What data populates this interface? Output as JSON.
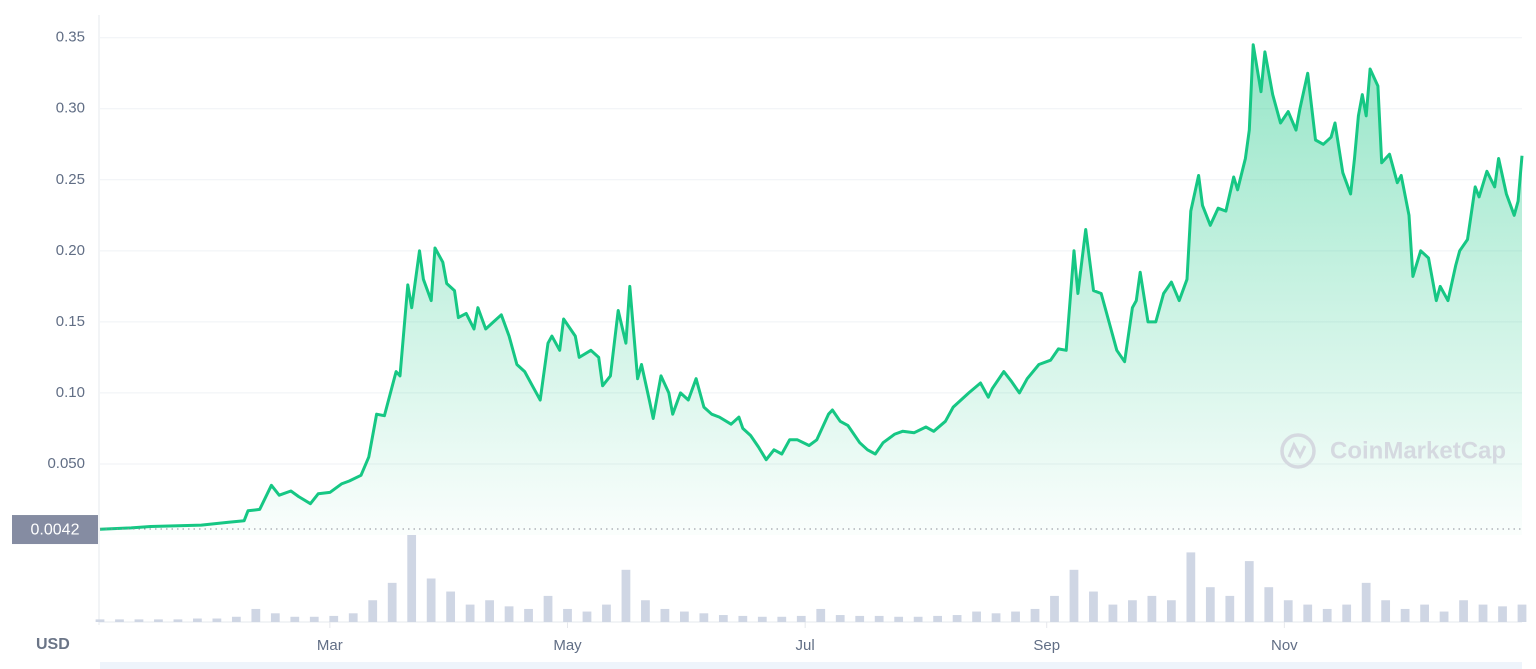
{
  "chart_data": {
    "type": "line",
    "currency": "USD",
    "watermark": "CoinMarketCap",
    "start_price": 0.0042,
    "color": "#16c784",
    "xlim": [
      0,
      365
    ],
    "xticks": [
      {
        "value": 59,
        "label": "Mar"
      },
      {
        "value": 120,
        "label": "May"
      },
      {
        "value": 181,
        "label": "Jul"
      },
      {
        "value": 243,
        "label": "Sep"
      },
      {
        "value": 304,
        "label": "Nov"
      }
    ],
    "ylim": [
      0,
      0.366
    ],
    "yticks": [
      {
        "value": 0.05,
        "label": "0.050"
      },
      {
        "value": 0.1,
        "label": "0.10"
      },
      0.15,
      {
        "value": 0.2,
        "label": "0.20"
      },
      0.25,
      {
        "value": 0.3,
        "label": "0.30"
      },
      0.35
    ],
    "grid": true,
    "x": [
      0,
      8,
      13,
      26,
      33,
      37,
      38,
      41,
      44,
      46,
      49,
      51,
      54,
      56,
      59,
      62,
      64,
      67,
      69,
      71,
      73,
      76,
      77,
      79,
      80,
      82,
      83,
      85,
      86,
      88,
      89,
      91,
      92,
      94,
      96,
      97,
      99,
      101,
      103,
      105,
      107,
      109,
      111,
      113,
      115,
      116,
      118,
      119,
      122,
      123,
      126,
      128,
      129,
      131,
      133,
      135,
      136,
      138,
      139,
      141,
      142,
      144,
      146,
      147,
      149,
      151,
      153,
      155,
      157,
      159,
      162,
      164,
      165,
      167,
      169,
      171,
      173,
      175,
      177,
      179,
      182,
      184,
      187,
      188,
      190,
      192,
      195,
      197,
      199,
      201,
      204,
      206,
      209,
      212,
      214,
      217,
      219,
      221,
      223,
      226,
      228,
      229,
      232,
      234,
      236,
      238,
      241,
      244,
      246,
      248,
      250,
      251,
      253,
      255,
      257,
      259,
      261,
      263,
      265,
      266,
      267,
      269,
      271,
      273,
      275,
      277,
      279,
      280,
      282,
      283,
      285,
      287,
      289,
      291,
      292,
      294,
      295,
      296,
      298,
      299,
      301,
      303,
      305,
      307,
      308,
      310,
      312,
      314,
      316,
      317,
      319,
      321,
      322,
      323,
      324,
      325,
      326,
      328,
      329,
      331,
      333,
      334,
      336,
      337,
      339,
      341,
      343,
      344,
      346,
      348,
      349,
      351,
      353,
      354,
      356,
      358,
      359,
      361,
      363,
      364,
      365
    ],
    "values": [
      0.004,
      0.005,
      0.006,
      0.007,
      0.009,
      0.01,
      0.017,
      0.018,
      0.035,
      0.028,
      0.031,
      0.027,
      0.022,
      0.029,
      0.03,
      0.036,
      0.038,
      0.042,
      0.055,
      0.085,
      0.084,
      0.115,
      0.112,
      0.176,
      0.16,
      0.2,
      0.18,
      0.165,
      0.202,
      0.192,
      0.177,
      0.172,
      0.153,
      0.156,
      0.145,
      0.16,
      0.145,
      0.15,
      0.155,
      0.14,
      0.12,
      0.115,
      0.105,
      0.095,
      0.135,
      0.14,
      0.13,
      0.152,
      0.14,
      0.125,
      0.13,
      0.125,
      0.105,
      0.112,
      0.158,
      0.135,
      0.175,
      0.11,
      0.12,
      0.095,
      0.082,
      0.112,
      0.1,
      0.085,
      0.1,
      0.095,
      0.11,
      0.09,
      0.085,
      0.083,
      0.078,
      0.083,
      0.075,
      0.07,
      0.062,
      0.053,
      0.06,
      0.057,
      0.067,
      0.067,
      0.063,
      0.067,
      0.085,
      0.088,
      0.08,
      0.077,
      0.065,
      0.06,
      0.057,
      0.065,
      0.071,
      0.073,
      0.072,
      0.076,
      0.073,
      0.08,
      0.09,
      0.095,
      0.1,
      0.107,
      0.097,
      0.103,
      0.115,
      0.108,
      0.1,
      0.11,
      0.12,
      0.123,
      0.131,
      0.13,
      0.2,
      0.17,
      0.215,
      0.172,
      0.17,
      0.15,
      0.13,
      0.122,
      0.16,
      0.165,
      0.185,
      0.15,
      0.15,
      0.17,
      0.178,
      0.165,
      0.18,
      0.228,
      0.253,
      0.232,
      0.218,
      0.23,
      0.228,
      0.252,
      0.243,
      0.265,
      0.285,
      0.345,
      0.312,
      0.34,
      0.31,
      0.29,
      0.298,
      0.285,
      0.3,
      0.325,
      0.278,
      0.275,
      0.28,
      0.29,
      0.255,
      0.24,
      0.265,
      0.295,
      0.31,
      0.295,
      0.328,
      0.316,
      0.262,
      0.268,
      0.248,
      0.253,
      0.225,
      0.182,
      0.2,
      0.195,
      0.165,
      0.175,
      0.165,
      0.19,
      0.2,
      0.208,
      0.245,
      0.238,
      0.256,
      0.245,
      0.265,
      0.24,
      0.225,
      0.235,
      0.267
    ],
    "y2lim": [
      0,
      100
    ],
    "volume": {
      "axis": "y2",
      "color": "#cfd6e4",
      "x": [
        0,
        5,
        10,
        15,
        20,
        25,
        30,
        35,
        40,
        45,
        50,
        55,
        60,
        65,
        70,
        75,
        80,
        85,
        90,
        95,
        100,
        105,
        110,
        115,
        120,
        125,
        130,
        135,
        140,
        145,
        150,
        155,
        160,
        165,
        170,
        175,
        180,
        185,
        190,
        195,
        200,
        205,
        210,
        215,
        220,
        225,
        230,
        235,
        240,
        245,
        250,
        255,
        260,
        265,
        270,
        275,
        280,
        285,
        290,
        295,
        300,
        305,
        310,
        315,
        320,
        325,
        330,
        335,
        340,
        345,
        350,
        355,
        360,
        365
      ],
      "values": [
        3,
        3,
        3,
        3,
        3,
        4,
        4,
        6,
        15,
        10,
        6,
        6,
        7,
        10,
        25,
        45,
        100,
        50,
        35,
        20,
        25,
        18,
        15,
        30,
        15,
        12,
        20,
        60,
        25,
        15,
        12,
        10,
        8,
        7,
        6,
        6,
        7,
        15,
        8,
        7,
        7,
        6,
        6,
        7,
        8,
        12,
        10,
        12,
        15,
        30,
        60,
        35,
        20,
        25,
        30,
        25,
        80,
        40,
        30,
        70,
        40,
        25,
        20,
        15,
        20,
        45,
        25,
        15,
        20,
        12,
        25,
        20,
        18,
        20
      ]
    }
  }
}
